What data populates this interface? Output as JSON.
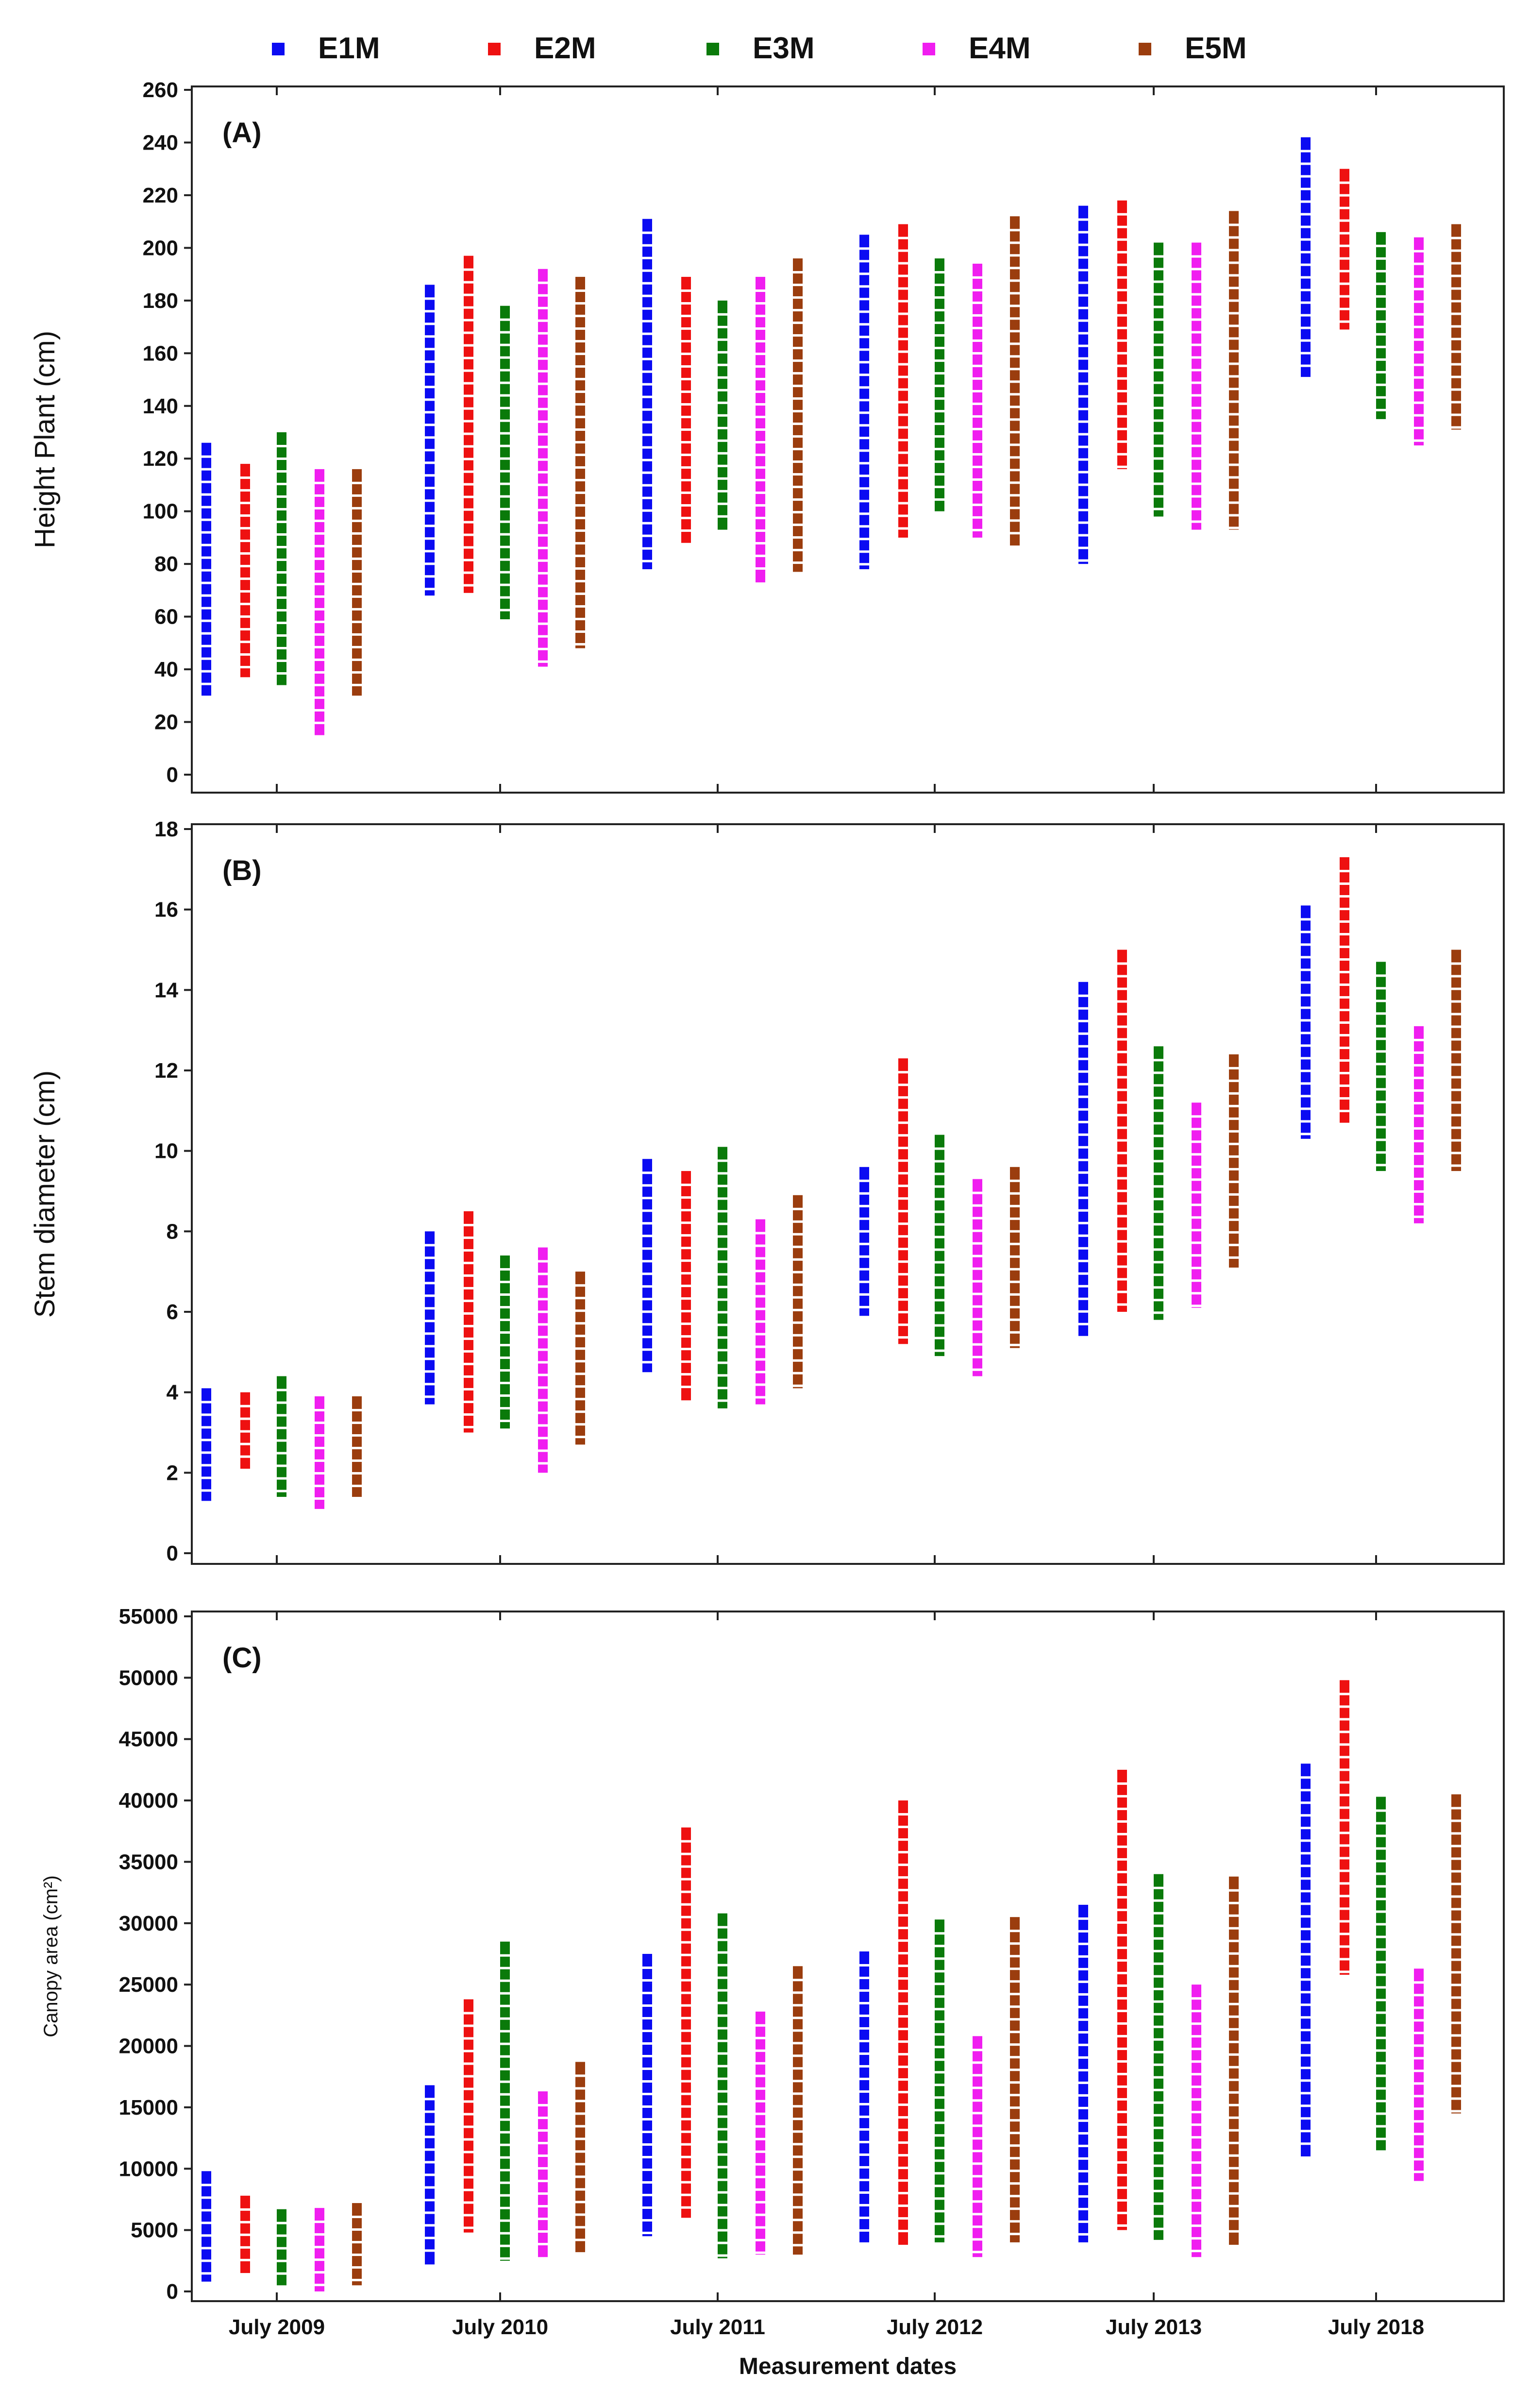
{
  "chart_data": [
    {
      "type": "scatter",
      "panel_label": "(A)",
      "ylabel": "Height Plant (cm)",
      "xlabel": "",
      "ylim": [
        0,
        260
      ],
      "yticks": [
        0,
        20,
        40,
        60,
        80,
        100,
        120,
        140,
        160,
        180,
        200,
        220,
        240,
        260
      ],
      "grid": false,
      "series": [
        {
          "name": "E1M",
          "ranges": [
            [
              30,
              126
            ],
            [
              68,
              186
            ],
            [
              78,
              211
            ],
            [
              78,
              205
            ],
            [
              80,
              216
            ],
            [
              151,
              242
            ]
          ]
        },
        {
          "name": "E2M",
          "ranges": [
            [
              37,
              118
            ],
            [
              69,
              197
            ],
            [
              88,
              189
            ],
            [
              90,
              209
            ],
            [
              116,
              218
            ],
            [
              169,
              230
            ]
          ]
        },
        {
          "name": "E3M",
          "ranges": [
            [
              34,
              130
            ],
            [
              59,
              178
            ],
            [
              93,
              180
            ],
            [
              100,
              196
            ],
            [
              98,
              202
            ],
            [
              135,
              206
            ]
          ]
        },
        {
          "name": "E4M",
          "ranges": [
            [
              15,
              116
            ],
            [
              41,
              192
            ],
            [
              73,
              189
            ],
            [
              90,
              194
            ],
            [
              93,
              202
            ],
            [
              125,
              204
            ]
          ]
        },
        {
          "name": "E5M",
          "ranges": [
            [
              30,
              116
            ],
            [
              48,
              189
            ],
            [
              77,
              196
            ],
            [
              87,
              212
            ],
            [
              93,
              214
            ],
            [
              131,
              209
            ]
          ]
        }
      ]
    },
    {
      "type": "scatter",
      "panel_label": "(B)",
      "ylabel": "Stem diameter (cm)",
      "xlabel": "",
      "ylim": [
        0,
        18
      ],
      "yticks": [
        0,
        2,
        4,
        6,
        8,
        10,
        12,
        14,
        16,
        18
      ],
      "grid": false,
      "series": [
        {
          "name": "E1M",
          "ranges": [
            [
              1.3,
              4.1
            ],
            [
              3.7,
              8.0
            ],
            [
              4.5,
              9.8
            ],
            [
              5.9,
              9.6
            ],
            [
              5.4,
              14.2
            ],
            [
              10.3,
              16.1
            ]
          ]
        },
        {
          "name": "E2M",
          "ranges": [
            [
              2.1,
              4.0
            ],
            [
              3.0,
              8.5
            ],
            [
              3.8,
              9.5
            ],
            [
              5.2,
              12.3
            ],
            [
              6.0,
              15.0
            ],
            [
              10.7,
              17.3
            ]
          ]
        },
        {
          "name": "E3M",
          "ranges": [
            [
              1.4,
              4.4
            ],
            [
              3.1,
              7.4
            ],
            [
              3.6,
              10.1
            ],
            [
              4.9,
              10.4
            ],
            [
              5.8,
              12.6
            ],
            [
              9.5,
              14.7
            ]
          ]
        },
        {
          "name": "E4M",
          "ranges": [
            [
              1.1,
              3.9
            ],
            [
              2.0,
              7.6
            ],
            [
              3.7,
              8.3
            ],
            [
              4.4,
              9.3
            ],
            [
              6.1,
              11.2
            ],
            [
              8.2,
              13.1
            ]
          ]
        },
        {
          "name": "E5M",
          "ranges": [
            [
              1.4,
              3.9
            ],
            [
              2.7,
              7.0
            ],
            [
              4.1,
              8.9
            ],
            [
              5.1,
              9.6
            ],
            [
              7.1,
              12.4
            ],
            [
              9.5,
              15.0
            ]
          ]
        }
      ]
    },
    {
      "type": "scatter",
      "panel_label": "(C)",
      "ylabel": "Canopy area (cm²)",
      "xlabel": "Measurement dates",
      "ylim": [
        0,
        55000
      ],
      "yticks": [
        0,
        5000,
        10000,
        15000,
        20000,
        25000,
        30000,
        35000,
        40000,
        45000,
        50000,
        55000
      ],
      "grid": false,
      "categories": [
        "July 2009",
        "July 2010",
        "July 2011",
        "July 2012",
        "July 2013",
        "July 2018"
      ],
      "series": [
        {
          "name": "E1M",
          "ranges": [
            [
              800,
              9800
            ],
            [
              2200,
              16800
            ],
            [
              4500,
              27500
            ],
            [
              4000,
              27700
            ],
            [
              4000,
              31500
            ],
            [
              11000,
              43000
            ]
          ]
        },
        {
          "name": "E2M",
          "ranges": [
            [
              1500,
              7800
            ],
            [
              4800,
              23800
            ],
            [
              6000,
              37800
            ],
            [
              3800,
              40000
            ],
            [
              5000,
              42500
            ],
            [
              25800,
              49800
            ]
          ]
        },
        {
          "name": "E3M",
          "ranges": [
            [
              500,
              6700
            ],
            [
              2500,
              28500
            ],
            [
              2700,
              30800
            ],
            [
              4000,
              30300
            ],
            [
              4200,
              34000
            ],
            [
              11500,
              40300
            ]
          ]
        },
        {
          "name": "E4M",
          "ranges": [
            [
              0,
              6800
            ],
            [
              2800,
              16300
            ],
            [
              3000,
              22800
            ],
            [
              2800,
              20800
            ],
            [
              2800,
              25000
            ],
            [
              9000,
              26300
            ]
          ]
        },
        {
          "name": "E5M",
          "ranges": [
            [
              500,
              7200
            ],
            [
              3200,
              18700
            ],
            [
              3000,
              26500
            ],
            [
              4000,
              30500
            ],
            [
              3800,
              33800
            ],
            [
              14500,
              40500
            ]
          ]
        }
      ]
    }
  ],
  "legend": [
    "E1M",
    "E2M",
    "E3M",
    "E4M",
    "E5M"
  ],
  "colors": {
    "E1M": "#0b0bf2",
    "E2M": "#ee1111",
    "E3M": "#0a7a0a",
    "E4M": "#f01ef0",
    "E5M": "#9b3d0e"
  }
}
